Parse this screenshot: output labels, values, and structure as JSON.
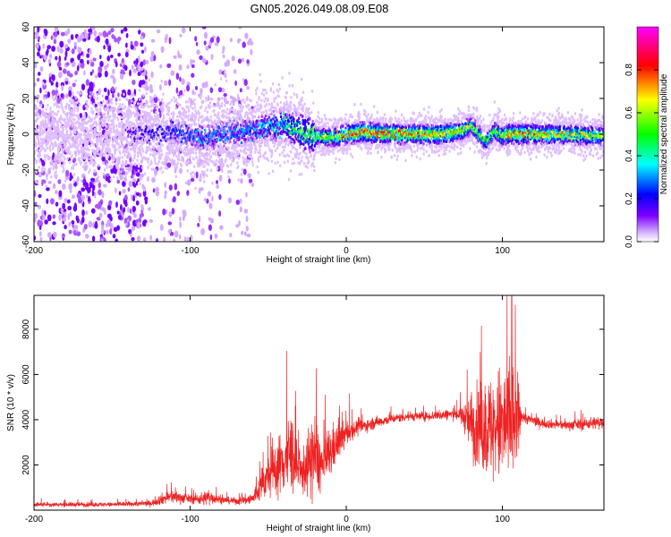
{
  "chart_data": [
    {
      "type": "heatmap",
      "title": "GN05.2026.049.08.09.E08",
      "xlabel": "Height of straight line (km)",
      "ylabel": "Frequency (Hz)",
      "xlim": [
        -200,
        165
      ],
      "ylim": [
        -60,
        60
      ],
      "xticks": [
        -200,
        -100,
        0,
        100
      ],
      "yticks": [
        -60,
        -40,
        -20,
        0,
        20,
        40,
        60
      ],
      "colorbar": {
        "label": "Normalized spectral amplitude",
        "range": [
          0.0,
          1.0
        ],
        "ticks": [
          0.0,
          0.2,
          0.4,
          0.6,
          0.8
        ],
        "tick_labels": [
          "0.0",
          "0.2",
          "0.4",
          "0.6",
          "0.8"
        ],
        "colormap": [
          "#ffffff",
          "#7f00ff",
          "#0000ff",
          "#00ffff",
          "#00ff00",
          "#ffff00",
          "#ff0000",
          "#ff00ff"
        ]
      },
      "ridge": {
        "x": [
          -200,
          -150,
          -130,
          -110,
          -90,
          -70,
          -50,
          -40,
          -30,
          -20,
          -10,
          0,
          10,
          30,
          60,
          75,
          80,
          85,
          90,
          95,
          100,
          105,
          120,
          140,
          165
        ],
        "freq": [
          0,
          0,
          0,
          1,
          -2,
          1,
          4,
          5,
          2,
          -1,
          -2,
          0,
          1,
          0,
          0,
          2,
          5,
          0,
          -4,
          2,
          -1,
          0,
          0,
          0,
          -1
        ],
        "amplitude": [
          0.1,
          0.12,
          0.18,
          0.25,
          0.3,
          0.28,
          0.35,
          0.4,
          0.5,
          0.55,
          0.6,
          0.75,
          0.8,
          0.78,
          0.7,
          0.65,
          0.6,
          0.55,
          0.5,
          0.55,
          0.6,
          0.75,
          0.72,
          0.68,
          0.6
        ]
      },
      "noise_regions": [
        {
          "x": [
            -200,
            -128
          ],
          "density": 1.0
        },
        {
          "x": [
            -128,
            -60
          ],
          "density": 0.45
        }
      ]
    },
    {
      "type": "line",
      "xlabel": "Height of straight line (km)",
      "ylabel": "SNR (10 * v/v)",
      "xlim": [
        -200,
        165
      ],
      "ylim": [
        0,
        9500
      ],
      "xticks": [
        -200,
        -100,
        0,
        100
      ],
      "yticks": [
        2000,
        4000,
        6000,
        8000
      ],
      "color": "#ee2222",
      "series": [
        {
          "name": "SNR",
          "x": [
            -200,
            -150,
            -125,
            -118,
            -112,
            -100,
            -92,
            -88,
            -80,
            -70,
            -60,
            -55,
            -50,
            -40,
            -35,
            -30,
            -25,
            -20,
            -15,
            -10,
            -5,
            0,
            5,
            10,
            20,
            30,
            40,
            50,
            60,
            70,
            75,
            80,
            85,
            90,
            95,
            100,
            105,
            110,
            112,
            115,
            125,
            140,
            150,
            165
          ],
          "base": [
            250,
            250,
            300,
            500,
            600,
            500,
            500,
            600,
            450,
            400,
            500,
            1000,
            1500,
            2200,
            2600,
            1500,
            2000,
            2400,
            1900,
            2600,
            3000,
            3400,
            3600,
            3700,
            3900,
            4050,
            4150,
            4150,
            4200,
            4250,
            4150,
            3800,
            3700,
            3600,
            3600,
            3700,
            3900,
            3900,
            4200,
            4050,
            3850,
            3750,
            3800,
            3900
          ],
          "noise": [
            100,
            100,
            120,
            250,
            300,
            180,
            300,
            350,
            150,
            150,
            300,
            600,
            900,
            1500,
            1800,
            800,
            1300,
            2000,
            900,
            1200,
            700,
            600,
            400,
            300,
            250,
            200,
            200,
            200,
            220,
            250,
            500,
            1400,
            1800,
            2200,
            2400,
            2800,
            2800,
            2000,
            300,
            250,
            200,
            200,
            250,
            300
          ],
          "peak": {
            "x": 106,
            "y": 9500
          }
        }
      ]
    }
  ],
  "colors": {
    "line": "#ee2222",
    "axis": "#000000",
    "background": "#ffffff"
  }
}
